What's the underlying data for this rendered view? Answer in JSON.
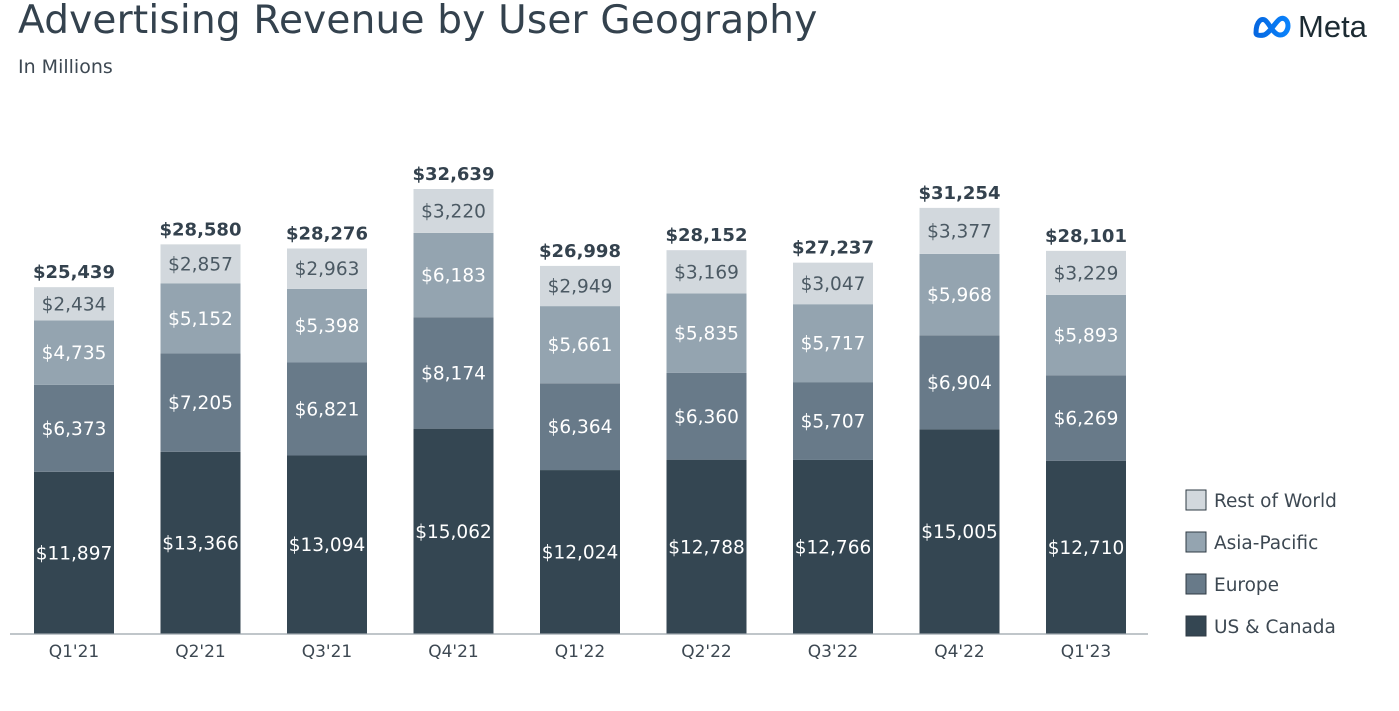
{
  "header": {
    "title": "Advertising Revenue by User Geography",
    "subtitle": "In Millions",
    "logo_text": "Meta"
  },
  "chart_data": {
    "type": "bar",
    "stacked": true,
    "title": "Advertising Revenue by User Geography",
    "subtitle": "In Millions",
    "categories": [
      "Q1'21",
      "Q2'21",
      "Q3'21",
      "Q4'21",
      "Q1'22",
      "Q2'22",
      "Q3'22",
      "Q4'22",
      "Q1'23"
    ],
    "series": [
      {
        "name": "US & Canada",
        "color": "#344652",
        "text_color": "#ffffff",
        "values": [
          11897,
          13366,
          13094,
          15062,
          12024,
          12788,
          12766,
          15005,
          12710
        ]
      },
      {
        "name": "Europe",
        "color": "#687a89",
        "text_color": "#ffffff",
        "values": [
          6373,
          7205,
          6821,
          8174,
          6364,
          6360,
          5707,
          6904,
          6269
        ]
      },
      {
        "name": "Asia-Pacific",
        "color": "#94a4b0",
        "text_color": "#ffffff",
        "values": [
          4735,
          5152,
          5398,
          6183,
          5661,
          5835,
          5717,
          5968,
          5893
        ]
      },
      {
        "name": "Rest of World",
        "color": "#d2d8dd",
        "text_color": "#4b5963",
        "values": [
          2434,
          2857,
          2963,
          3220,
          2949,
          3169,
          3047,
          3377,
          3229
        ]
      }
    ],
    "segment_labels": [
      [
        "$11,897",
        "$13,366",
        "$13,094",
        "$15,062",
        "$12,024",
        "$12,788",
        "$12,766",
        "$15,005",
        "$12,710"
      ],
      [
        "$6,373",
        "$7,205",
        "$6,821",
        "$8,174",
        "$6,364",
        "$6,360",
        "$5,707",
        "$6,904",
        "$6,269"
      ],
      [
        "$4,735",
        "$5,152",
        "$5,398",
        "$6,183",
        "$5,661",
        "$5,835",
        "$5,717",
        "$5,968",
        "$5,893"
      ],
      [
        "$2,434",
        "$2,857",
        "$2,963",
        "$3,220",
        "$2,949",
        "$3,169",
        "$3,047",
        "$3,377",
        "$3,229"
      ]
    ],
    "totals": [
      25439,
      28580,
      28276,
      32639,
      26998,
      28152,
      27237,
      31254,
      28101
    ],
    "total_labels": [
      "$25,439",
      "$28,580",
      "$28,276",
      "$32,639",
      "$26,998",
      "$28,152",
      "$27,237",
      "$31,254",
      "$28,101"
    ],
    "legend": [
      "Rest of World",
      "Asia-Pacific",
      "Europe",
      "US & Canada"
    ],
    "legend_position": "right",
    "ylim": [
      0,
      32639
    ],
    "grid": false
  }
}
